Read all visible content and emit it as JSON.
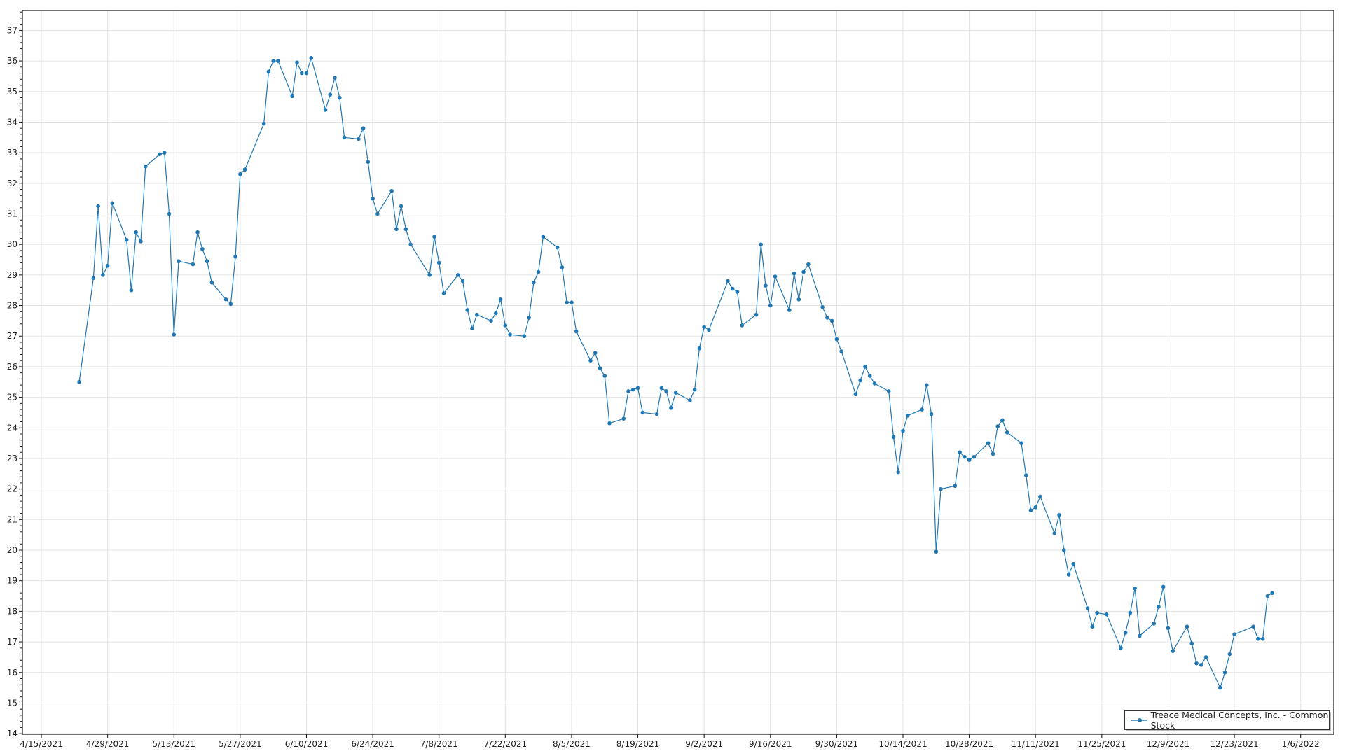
{
  "chart_data": {
    "type": "line",
    "title": "",
    "xlabel": "",
    "ylabel": "",
    "xlim": [
      "2021-04-11",
      "2022-01-13"
    ],
    "ylim": [
      13.98,
      37.65
    ],
    "grid": true,
    "legend_position": "bottom-right",
    "x_tick_labels": [
      "4/15/2021",
      "4/29/2021",
      "5/13/2021",
      "5/27/2021",
      "6/10/2021",
      "6/24/2021",
      "7/8/2021",
      "7/22/2021",
      "8/5/2021",
      "8/19/2021",
      "9/2/2021",
      "9/16/2021",
      "9/30/2021",
      "10/14/2021",
      "10/28/2021",
      "11/11/2021",
      "11/25/2021",
      "12/9/2021",
      "12/23/2021",
      "1/6/2022"
    ],
    "y_tick_labels": [
      "14",
      "15",
      "16",
      "17",
      "18",
      "19",
      "20",
      "21",
      "22",
      "23",
      "24",
      "25",
      "26",
      "27",
      "28",
      "29",
      "30",
      "31",
      "32",
      "33",
      "34",
      "35",
      "36",
      "37"
    ],
    "series": [
      {
        "name": "Treace Medical Concepts, Inc. - Common Stock",
        "color": "#1f77b4",
        "x": [
          "2021-04-23",
          "2021-04-26",
          "2021-04-27",
          "2021-04-28",
          "2021-04-29",
          "2021-04-30",
          "2021-05-03",
          "2021-05-04",
          "2021-05-05",
          "2021-05-06",
          "2021-05-07",
          "2021-05-10",
          "2021-05-11",
          "2021-05-12",
          "2021-05-13",
          "2021-05-14",
          "2021-05-17",
          "2021-05-18",
          "2021-05-19",
          "2021-05-20",
          "2021-05-21",
          "2021-05-24",
          "2021-05-25",
          "2021-05-26",
          "2021-05-27",
          "2021-05-28",
          "2021-06-01",
          "2021-06-02",
          "2021-06-03",
          "2021-06-04",
          "2021-06-07",
          "2021-06-08",
          "2021-06-09",
          "2021-06-10",
          "2021-06-11",
          "2021-06-14",
          "2021-06-15",
          "2021-06-16",
          "2021-06-17",
          "2021-06-18",
          "2021-06-21",
          "2021-06-22",
          "2021-06-23",
          "2021-06-24",
          "2021-06-25",
          "2021-06-28",
          "2021-06-29",
          "2021-06-30",
          "2021-07-01",
          "2021-07-02",
          "2021-07-06",
          "2021-07-07",
          "2021-07-08",
          "2021-07-09",
          "2021-07-12",
          "2021-07-13",
          "2021-07-14",
          "2021-07-15",
          "2021-07-16",
          "2021-07-19",
          "2021-07-20",
          "2021-07-21",
          "2021-07-22",
          "2021-07-23",
          "2021-07-26",
          "2021-07-27",
          "2021-07-28",
          "2021-07-29",
          "2021-07-30",
          "2021-08-02",
          "2021-08-03",
          "2021-08-04",
          "2021-08-05",
          "2021-08-06",
          "2021-08-09",
          "2021-08-10",
          "2021-08-11",
          "2021-08-12",
          "2021-08-13",
          "2021-08-16",
          "2021-08-17",
          "2021-08-18",
          "2021-08-19",
          "2021-08-20",
          "2021-08-23",
          "2021-08-24",
          "2021-08-25",
          "2021-08-26",
          "2021-08-27",
          "2021-08-30",
          "2021-08-31",
          "2021-09-01",
          "2021-09-02",
          "2021-09-03",
          "2021-09-07",
          "2021-09-08",
          "2021-09-09",
          "2021-09-10",
          "2021-09-13",
          "2021-09-14",
          "2021-09-15",
          "2021-09-16",
          "2021-09-17",
          "2021-09-20",
          "2021-09-21",
          "2021-09-22",
          "2021-09-23",
          "2021-09-24",
          "2021-09-27",
          "2021-09-28",
          "2021-09-29",
          "2021-09-30",
          "2021-10-01",
          "2021-10-04",
          "2021-10-05",
          "2021-10-06",
          "2021-10-07",
          "2021-10-08",
          "2021-10-11",
          "2021-10-12",
          "2021-10-13",
          "2021-10-14",
          "2021-10-15",
          "2021-10-18",
          "2021-10-19",
          "2021-10-20",
          "2021-10-21",
          "2021-10-22",
          "2021-10-25",
          "2021-10-26",
          "2021-10-27",
          "2021-10-28",
          "2021-10-29",
          "2021-11-01",
          "2021-11-02",
          "2021-11-03",
          "2021-11-04",
          "2021-11-05",
          "2021-11-08",
          "2021-11-09",
          "2021-11-10",
          "2021-11-11",
          "2021-11-12",
          "2021-11-15",
          "2021-11-16",
          "2021-11-17",
          "2021-11-18",
          "2021-11-19",
          "2021-11-22",
          "2021-11-23",
          "2021-11-24",
          "2021-11-26",
          "2021-11-29",
          "2021-11-30",
          "2021-12-01",
          "2021-12-02",
          "2021-12-03",
          "2021-12-06",
          "2021-12-07",
          "2021-12-08",
          "2021-12-09",
          "2021-12-10",
          "2021-12-13",
          "2021-12-14",
          "2021-12-15",
          "2021-12-16",
          "2021-12-17",
          "2021-12-20",
          "2021-12-21",
          "2021-12-22",
          "2021-12-23",
          "2021-12-27",
          "2021-12-28",
          "2021-12-29",
          "2021-12-30",
          "2021-12-31"
        ],
        "y": [
          25.5,
          28.9,
          31.25,
          29.0,
          29.3,
          31.35,
          30.15,
          28.5,
          30.4,
          30.1,
          32.55,
          32.95,
          33.0,
          31.0,
          27.05,
          29.45,
          29.35,
          30.4,
          29.85,
          29.45,
          28.75,
          28.2,
          28.05,
          29.6,
          32.3,
          32.45,
          33.95,
          35.65,
          36.0,
          36.0,
          34.85,
          35.95,
          35.6,
          35.6,
          36.1,
          34.4,
          34.9,
          35.45,
          34.8,
          33.5,
          33.45,
          33.8,
          32.7,
          31.5,
          31.0,
          31.75,
          30.5,
          31.25,
          30.5,
          30.0,
          29.0,
          30.25,
          29.4,
          28.4,
          29.0,
          28.8,
          27.85,
          27.25,
          27.7,
          27.5,
          27.75,
          28.2,
          27.35,
          27.05,
          27.0,
          27.6,
          28.75,
          29.1,
          30.25,
          29.9,
          29.25,
          28.1,
          28.1,
          27.15,
          26.2,
          26.45,
          25.95,
          25.7,
          24.15,
          24.3,
          25.2,
          25.25,
          25.3,
          24.5,
          24.45,
          25.3,
          25.2,
          24.65,
          25.15,
          24.9,
          25.25,
          26.6,
          27.3,
          27.2,
          28.8,
          28.55,
          28.45,
          27.35,
          27.7,
          30.0,
          28.65,
          28.0,
          28.95,
          27.85,
          29.05,
          28.2,
          29.1,
          29.35,
          27.95,
          27.6,
          27.5,
          26.9,
          26.5,
          25.1,
          25.55,
          26.0,
          25.7,
          25.45,
          25.2,
          23.7,
          22.55,
          23.9,
          24.4,
          24.6,
          25.4,
          24.45,
          19.95,
          22.0,
          22.1,
          23.2,
          23.05,
          22.95,
          23.05,
          23.5,
          23.15,
          24.05,
          24.25,
          23.85,
          23.5,
          22.45,
          21.3,
          21.4,
          21.75,
          20.55,
          21.15,
          20.0,
          19.2,
          19.55,
          18.1,
          17.5,
          17.95,
          17.9,
          16.8,
          17.3,
          17.95,
          18.75,
          17.2,
          17.6,
          18.15,
          18.8,
          17.45,
          16.7,
          17.5,
          16.95,
          16.3,
          16.25,
          16.5,
          15.5,
          16.0,
          16.6,
          17.25,
          17.5,
          17.1,
          17.1,
          18.5,
          18.6
        ]
      }
    ]
  },
  "legend": {
    "label": "Treace Medical Concepts, Inc. - Common Stock"
  }
}
